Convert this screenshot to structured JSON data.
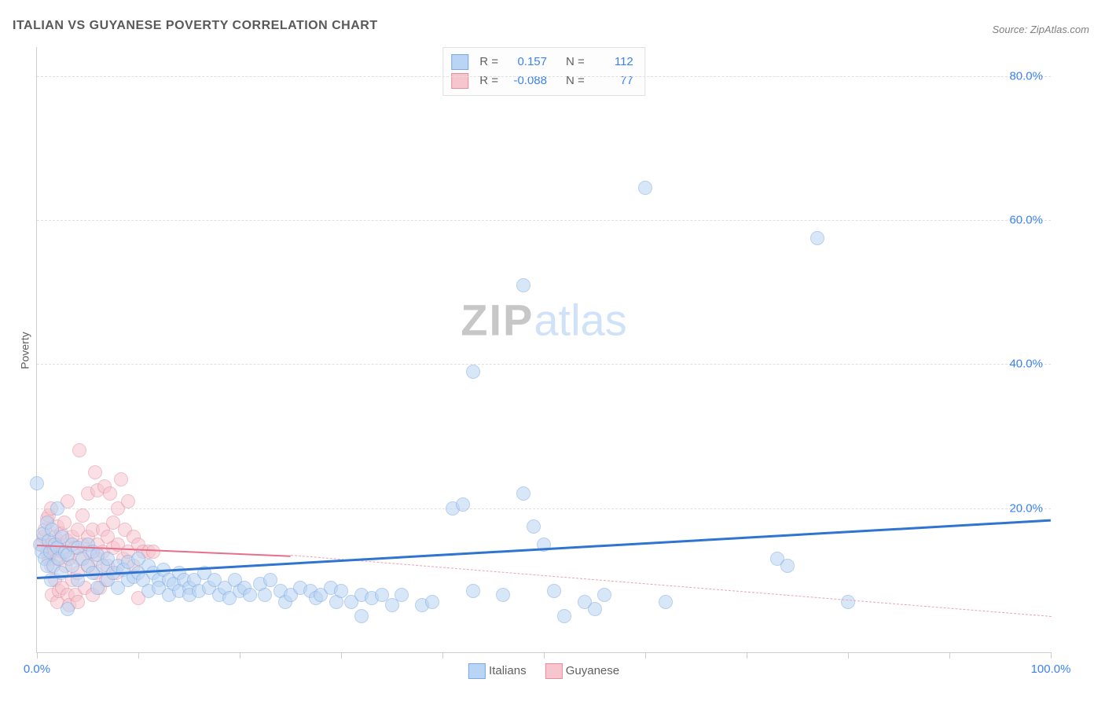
{
  "title": "ITALIAN VS GUYANESE POVERTY CORRELATION CHART",
  "source_label": "Source: ",
  "source_name": "ZipAtlas.com",
  "ylabel": "Poverty",
  "watermark_a": "ZIP",
  "watermark_b": "atlas",
  "axis_color": "#3b82f6",
  "text_color": "#606060",
  "chart": {
    "type": "scatter",
    "xlim": [
      0,
      100
    ],
    "ylim": [
      0,
      84
    ],
    "x_ticks": [
      0,
      10,
      20,
      30,
      40,
      50,
      60,
      70,
      80,
      90,
      100
    ],
    "x_tick_labels": {
      "0": "0.0%",
      "100": "100.0%"
    },
    "y_gridlines": [
      20,
      40,
      60,
      80
    ],
    "y_tick_labels": {
      "20": "20.0%",
      "40": "40.0%",
      "60": "60.0%",
      "80": "80.0%"
    },
    "background_color": "#ffffff",
    "grid_color": "#e0e0e0",
    "point_radius": 8,
    "point_opacity": 0.55,
    "series": [
      {
        "name": "Italians",
        "fill": "#b9d4f4",
        "stroke": "#7fa9e0",
        "trend": {
          "x1": 0,
          "y1": 10.5,
          "x2": 100,
          "y2": 18.5,
          "color": "#2f74d0",
          "width": 3,
          "dash": "solid"
        },
        "points": [
          [
            0,
            23.5
          ],
          [
            0.3,
            15
          ],
          [
            0.5,
            14
          ],
          [
            0.6,
            16.5
          ],
          [
            0.8,
            13
          ],
          [
            1,
            18
          ],
          [
            1,
            12
          ],
          [
            1.2,
            15.5
          ],
          [
            1.3,
            14
          ],
          [
            1.4,
            10
          ],
          [
            1.5,
            17
          ],
          [
            1.6,
            12
          ],
          [
            1.8,
            15
          ],
          [
            2,
            14.5
          ],
          [
            2,
            20
          ],
          [
            2.2,
            13
          ],
          [
            2.4,
            11
          ],
          [
            2.5,
            16
          ],
          [
            2.8,
            14
          ],
          [
            3,
            13.5
          ],
          [
            3,
            6
          ],
          [
            3.5,
            12
          ],
          [
            3.5,
            15
          ],
          [
            4,
            14.5
          ],
          [
            4,
            10
          ],
          [
            4.5,
            13
          ],
          [
            5,
            12
          ],
          [
            5,
            15
          ],
          [
            5.5,
            11
          ],
          [
            5.5,
            14
          ],
          [
            6,
            13.5
          ],
          [
            6,
            9
          ],
          [
            6.5,
            12
          ],
          [
            7,
            13
          ],
          [
            7,
            10
          ],
          [
            7.5,
            11
          ],
          [
            8,
            12
          ],
          [
            8,
            9
          ],
          [
            8.5,
            11.5
          ],
          [
            9,
            10
          ],
          [
            9,
            12.5
          ],
          [
            9.5,
            10.5
          ],
          [
            10,
            13
          ],
          [
            10,
            11
          ],
          [
            10.5,
            10
          ],
          [
            11,
            8.5
          ],
          [
            11,
            12
          ],
          [
            11.5,
            11
          ],
          [
            12,
            10
          ],
          [
            12,
            9
          ],
          [
            12.5,
            11.5
          ],
          [
            13,
            10
          ],
          [
            13,
            8
          ],
          [
            13.5,
            9.5
          ],
          [
            14,
            11
          ],
          [
            14,
            8.5
          ],
          [
            14.5,
            10
          ],
          [
            15,
            9
          ],
          [
            15,
            8
          ],
          [
            15.5,
            10
          ],
          [
            16,
            8.5
          ],
          [
            16.5,
            11
          ],
          [
            17,
            9
          ],
          [
            17.5,
            10
          ],
          [
            18,
            8
          ],
          [
            18.5,
            9
          ],
          [
            19,
            7.5
          ],
          [
            19.5,
            10
          ],
          [
            20,
            8.5
          ],
          [
            20.5,
            9
          ],
          [
            21,
            8
          ],
          [
            22,
            9.5
          ],
          [
            22.5,
            8
          ],
          [
            23,
            10
          ],
          [
            24,
            8.5
          ],
          [
            24.5,
            7
          ],
          [
            25,
            8
          ],
          [
            26,
            9
          ],
          [
            27,
            8.5
          ],
          [
            27.5,
            7.5
          ],
          [
            28,
            8
          ],
          [
            29,
            9
          ],
          [
            29.5,
            7
          ],
          [
            30,
            8.5
          ],
          [
            31,
            7
          ],
          [
            32,
            5
          ],
          [
            32,
            8
          ],
          [
            33,
            7.5
          ],
          [
            34,
            8
          ],
          [
            35,
            6.5
          ],
          [
            36,
            8
          ],
          [
            38,
            6.5
          ],
          [
            39,
            7
          ],
          [
            41,
            20
          ],
          [
            42,
            20.5
          ],
          [
            43,
            8.5
          ],
          [
            43,
            39
          ],
          [
            46,
            8
          ],
          [
            48,
            22
          ],
          [
            48,
            51
          ],
          [
            49,
            17.5
          ],
          [
            50,
            15
          ],
          [
            51,
            8.5
          ],
          [
            52,
            5
          ],
          [
            54,
            7
          ],
          [
            55,
            6
          ],
          [
            56,
            8
          ],
          [
            60,
            64.5
          ],
          [
            62,
            7
          ],
          [
            73,
            13
          ],
          [
            74,
            12
          ],
          [
            77,
            57.5
          ],
          [
            80,
            7
          ]
        ]
      },
      {
        "name": "Guyanese",
        "fill": "#f6c5ce",
        "stroke": "#e48fa0",
        "trend_solid": {
          "x1": 0,
          "y1": 15,
          "x2": 25,
          "y2": 13.5,
          "color": "#e86f8b",
          "width": 2,
          "dash": "solid"
        },
        "trend_dash": {
          "x1": 25,
          "y1": 13.5,
          "x2": 100,
          "y2": 5,
          "color": "#e9a5b4",
          "width": 1,
          "dash": "dashed"
        },
        "points": [
          [
            0.5,
            15
          ],
          [
            0.7,
            16
          ],
          [
            0.8,
            17
          ],
          [
            1,
            14
          ],
          [
            1,
            18.5
          ],
          [
            1.2,
            13
          ],
          [
            1.2,
            19
          ],
          [
            1.4,
            12
          ],
          [
            1.4,
            20
          ],
          [
            1.5,
            15
          ],
          [
            1.5,
            8
          ],
          [
            1.6,
            14
          ],
          [
            1.8,
            16
          ],
          [
            1.8,
            10
          ],
          [
            2,
            17.5
          ],
          [
            2,
            13
          ],
          [
            2,
            7
          ],
          [
            2.2,
            15
          ],
          [
            2.2,
            8.5
          ],
          [
            2.4,
            16.5
          ],
          [
            2.5,
            14
          ],
          [
            2.5,
            9
          ],
          [
            2.7,
            18
          ],
          [
            2.8,
            12
          ],
          [
            3,
            15.5
          ],
          [
            3,
            8
          ],
          [
            3,
            21
          ],
          [
            3.2,
            13
          ],
          [
            3.2,
            6.5
          ],
          [
            3.5,
            16
          ],
          [
            3.5,
            10
          ],
          [
            3.7,
            14.5
          ],
          [
            3.8,
            8
          ],
          [
            4,
            17
          ],
          [
            4,
            11
          ],
          [
            4,
            7
          ],
          [
            4.2,
            28
          ],
          [
            4.2,
            13
          ],
          [
            4.5,
            15
          ],
          [
            4.5,
            19
          ],
          [
            4.7,
            9
          ],
          [
            5,
            16
          ],
          [
            5,
            12
          ],
          [
            5,
            22
          ],
          [
            5.2,
            14
          ],
          [
            5.5,
            17
          ],
          [
            5.5,
            8
          ],
          [
            5.7,
            25
          ],
          [
            5.8,
            11
          ],
          [
            6,
            15
          ],
          [
            6,
            13
          ],
          [
            6,
            22.5
          ],
          [
            6.2,
            9
          ],
          [
            6.5,
            17
          ],
          [
            6.5,
            14
          ],
          [
            6.7,
            23
          ],
          [
            6.8,
            10
          ],
          [
            7,
            16
          ],
          [
            7,
            12
          ],
          [
            7.2,
            22
          ],
          [
            7.5,
            14.5
          ],
          [
            7.5,
            18
          ],
          [
            7.8,
            11
          ],
          [
            8,
            15
          ],
          [
            8,
            20
          ],
          [
            8.3,
            24
          ],
          [
            8.5,
            13
          ],
          [
            8.7,
            17
          ],
          [
            9,
            14
          ],
          [
            9,
            21
          ],
          [
            9.5,
            16
          ],
          [
            9.5,
            12
          ],
          [
            10,
            15
          ],
          [
            10,
            7.5
          ],
          [
            10.5,
            14
          ],
          [
            11,
            14
          ],
          [
            11.5,
            14
          ]
        ]
      }
    ]
  },
  "stats": [
    {
      "swatch_fill": "#b9d4f4",
      "swatch_stroke": "#7fa9e0",
      "r": "0.157",
      "n": "112"
    },
    {
      "swatch_fill": "#f6c5ce",
      "swatch_stroke": "#e48fa0",
      "r": "-0.088",
      "n": "77"
    }
  ],
  "stat_labels": {
    "r": "R =",
    "n": "N ="
  },
  "legend": [
    {
      "swatch_fill": "#b9d4f4",
      "swatch_stroke": "#7fa9e0",
      "label": "Italians"
    },
    {
      "swatch_fill": "#f6c5ce",
      "swatch_stroke": "#e48fa0",
      "label": "Guyanese"
    }
  ]
}
